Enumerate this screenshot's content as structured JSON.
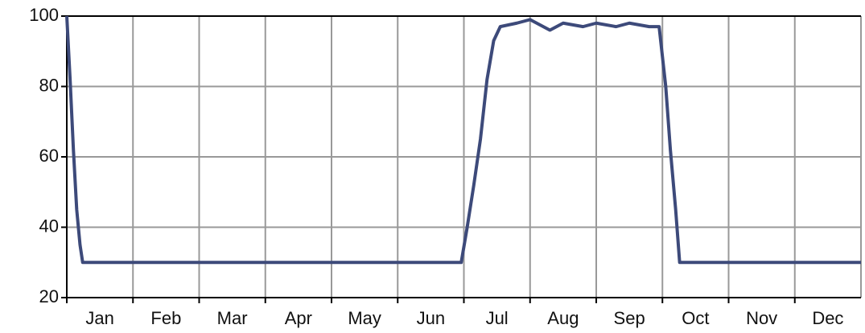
{
  "chart_data": {
    "type": "line",
    "categories": [
      "Jan",
      "Feb",
      "Mar",
      "Apr",
      "May",
      "Jun",
      "Jul",
      "Aug",
      "Sep",
      "Oct",
      "Nov",
      "Dec"
    ],
    "x": [
      0,
      0.05,
      0.1,
      0.15,
      0.2,
      0.24,
      5.96,
      6.05,
      6.15,
      6.25,
      6.35,
      6.45,
      6.55,
      6.8,
      7,
      7.3,
      7.5,
      7.8,
      8,
      8.3,
      8.5,
      8.8,
      8.95,
      9.05,
      9.12,
      9.2,
      9.26,
      12
    ],
    "series": [
      {
        "color": "#3d4a7a",
        "values": [
          100,
          82,
          62,
          45,
          35,
          30,
          30,
          40,
          52,
          65,
          82,
          93,
          97,
          98,
          99,
          96,
          98,
          97,
          98,
          97,
          98,
          97,
          97,
          80,
          62,
          45,
          30,
          30
        ]
      }
    ],
    "xlim": [
      0,
      12
    ],
    "ylim": [
      20,
      100
    ],
    "yticks": [
      20,
      40,
      60,
      80,
      100
    ],
    "grid": true
  }
}
